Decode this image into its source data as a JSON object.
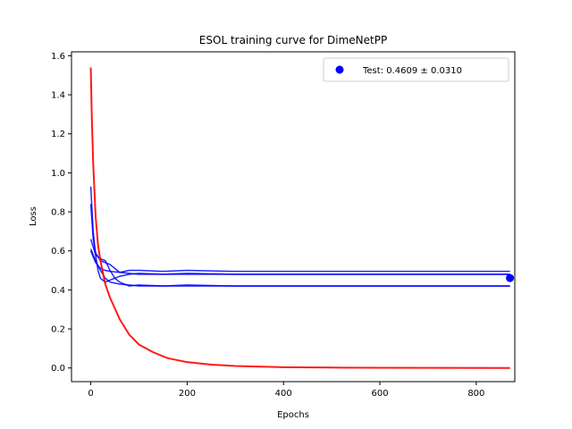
{
  "chart_data": {
    "type": "line",
    "title": "ESOL training curve for DimeNetPP",
    "xlabel": "Epochs",
    "ylabel": "Loss",
    "xlim": [
      -40,
      880
    ],
    "ylim": [
      -0.07,
      1.62
    ],
    "xticks": [
      0,
      200,
      400,
      600,
      800
    ],
    "yticks": [
      0.0,
      0.2,
      0.4,
      0.6,
      0.8,
      1.0,
      1.2,
      1.4,
      1.6
    ],
    "grid": false,
    "legend_position": "top-right",
    "colors": {
      "train": "#ff0000",
      "validation": "#0000ff",
      "test": "#0000ff"
    },
    "series": [
      {
        "role": "train",
        "points": [
          [
            0,
            1.54
          ],
          [
            2,
            1.3
          ],
          [
            5,
            1.05
          ],
          [
            10,
            0.78
          ],
          [
            15,
            0.63
          ],
          [
            20,
            0.55
          ],
          [
            30,
            0.43
          ],
          [
            40,
            0.36
          ],
          [
            60,
            0.25
          ],
          [
            80,
            0.17
          ],
          [
            100,
            0.12
          ],
          [
            130,
            0.08
          ],
          [
            160,
            0.05
          ],
          [
            200,
            0.03
          ],
          [
            250,
            0.017
          ],
          [
            300,
            0.01
          ],
          [
            400,
            0.004
          ],
          [
            500,
            0.002
          ],
          [
            600,
            0.001
          ],
          [
            870,
            0.0
          ]
        ]
      },
      {
        "role": "validation",
        "points": [
          [
            0,
            0.93
          ],
          [
            5,
            0.7
          ],
          [
            10,
            0.58
          ],
          [
            15,
            0.5
          ],
          [
            20,
            0.46
          ],
          [
            30,
            0.44
          ],
          [
            40,
            0.45
          ],
          [
            60,
            0.47
          ],
          [
            80,
            0.48
          ],
          [
            100,
            0.485
          ],
          [
            150,
            0.48
          ],
          [
            200,
            0.485
          ],
          [
            300,
            0.48
          ],
          [
            500,
            0.48
          ],
          [
            870,
            0.48
          ]
        ]
      },
      {
        "role": "validation",
        "points": [
          [
            0,
            0.84
          ],
          [
            5,
            0.66
          ],
          [
            10,
            0.59
          ],
          [
            20,
            0.55
          ],
          [
            30,
            0.54
          ],
          [
            40,
            0.53
          ],
          [
            50,
            0.51
          ],
          [
            60,
            0.49
          ],
          [
            80,
            0.5
          ],
          [
            100,
            0.5
          ],
          [
            150,
            0.495
          ],
          [
            200,
            0.5
          ],
          [
            300,
            0.495
          ],
          [
            500,
            0.495
          ],
          [
            870,
            0.495
          ]
        ]
      },
      {
        "role": "validation",
        "points": [
          [
            0,
            0.66
          ],
          [
            10,
            0.58
          ],
          [
            20,
            0.56
          ],
          [
            30,
            0.55
          ],
          [
            40,
            0.5
          ],
          [
            50,
            0.46
          ],
          [
            60,
            0.44
          ],
          [
            80,
            0.42
          ],
          [
            100,
            0.425
          ],
          [
            150,
            0.42
          ],
          [
            200,
            0.425
          ],
          [
            300,
            0.42
          ],
          [
            500,
            0.42
          ],
          [
            870,
            0.42
          ]
        ]
      },
      {
        "role": "validation",
        "points": [
          [
            0,
            0.61
          ],
          [
            10,
            0.55
          ],
          [
            20,
            0.5
          ],
          [
            30,
            0.46
          ],
          [
            40,
            0.44
          ],
          [
            60,
            0.43
          ],
          [
            80,
            0.425
          ],
          [
            100,
            0.42
          ],
          [
            150,
            0.42
          ],
          [
            300,
            0.42
          ],
          [
            870,
            0.42
          ]
        ]
      },
      {
        "role": "validation",
        "points": [
          [
            0,
            0.6
          ],
          [
            5,
            0.57
          ],
          [
            10,
            0.54
          ],
          [
            20,
            0.51
          ],
          [
            30,
            0.5
          ],
          [
            40,
            0.495
          ],
          [
            60,
            0.49
          ],
          [
            80,
            0.485
          ],
          [
            100,
            0.48
          ],
          [
            150,
            0.48
          ],
          [
            300,
            0.48
          ],
          [
            870,
            0.48
          ]
        ]
      }
    ],
    "test_point": {
      "x": 870,
      "y": 0.4609
    },
    "legend": {
      "label": "Test: 0.4609 ± 0.0310"
    }
  }
}
